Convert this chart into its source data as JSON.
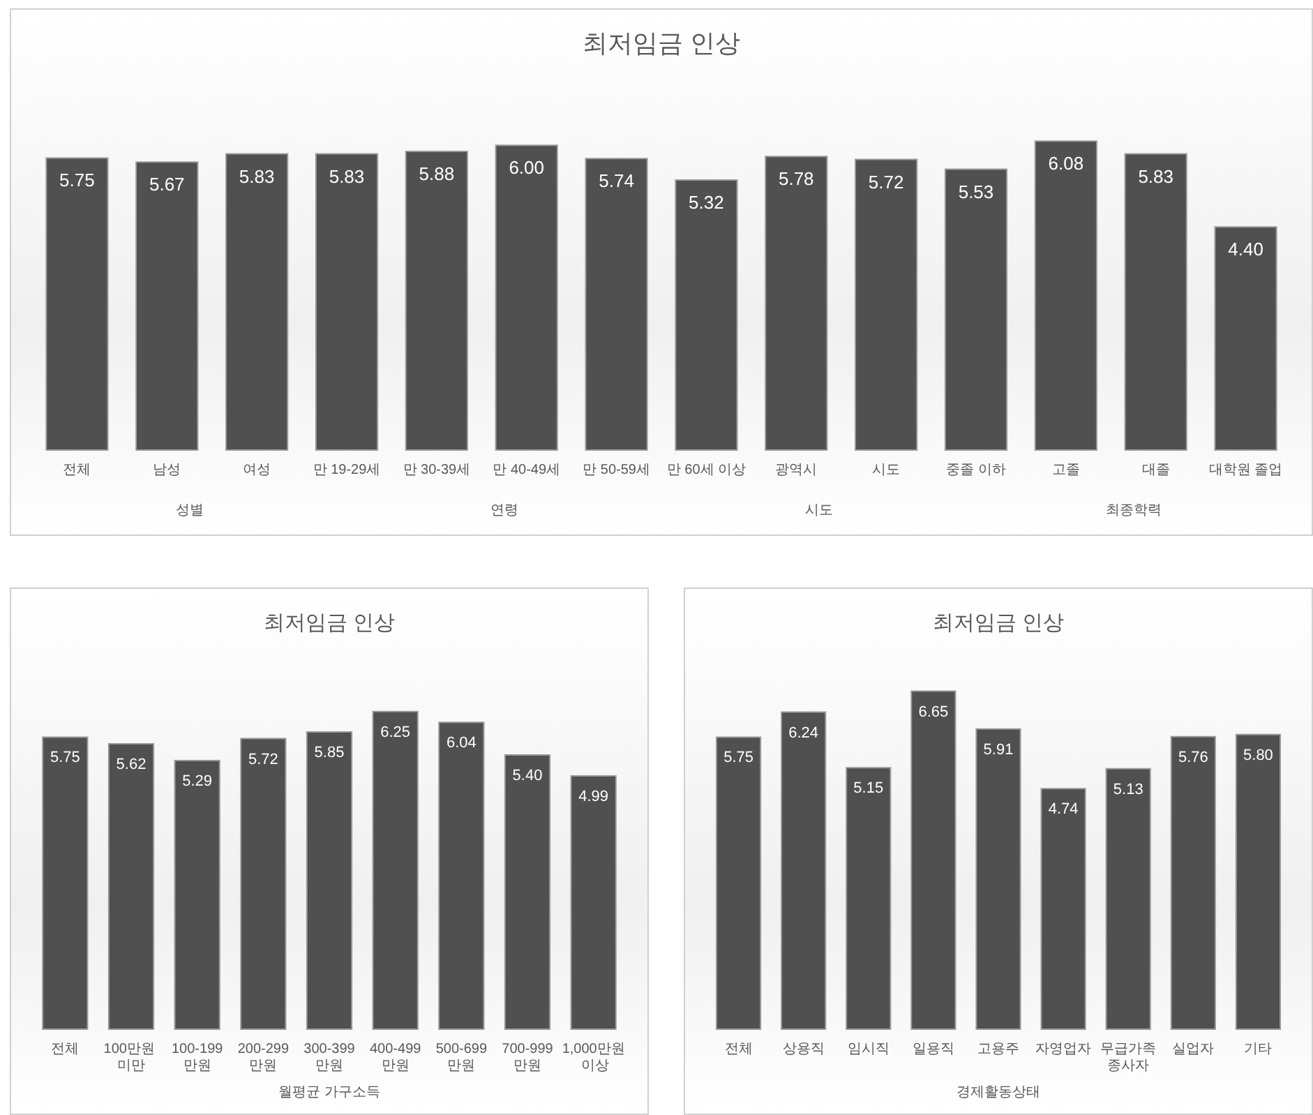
{
  "chart_data": [
    {
      "type": "bar",
      "title": "최저임금 인상",
      "categories": [
        "전체",
        "남성",
        "여성",
        "만 19-29세",
        "만 30-39세",
        "만 40-49세",
        "만 50-59세",
        "만 60세 이상",
        "광역시",
        "시도",
        "중졸 이하",
        "고졸",
        "대졸",
        "대학원 졸업"
      ],
      "values": [
        5.75,
        5.67,
        5.83,
        5.83,
        5.88,
        6.0,
        5.74,
        5.32,
        5.78,
        5.72,
        5.53,
        6.08,
        5.83,
        4.4
      ],
      "color": "#505050",
      "value_labels": [
        "5.75",
        "5.67",
        "5.83",
        "5.83",
        "5.88",
        "6.00",
        "5.74",
        "5.32",
        "5.78",
        "5.72",
        "5.53",
        "6.08",
        "5.83",
        "4.40"
      ],
      "annotations": [
        "성별",
        "연령",
        "시도",
        "최종학력"
      ]
    },
    {
      "type": "bar",
      "title": "최저임금 인상",
      "xlabel": "월평균 가구소득",
      "categories": [
        "전체",
        "100만원 미만",
        "100-199만원",
        "200-299만원",
        "300-399만원",
        "400-499만원",
        "500-699만원",
        "700-999만원",
        "1,000만원 이상"
      ],
      "values": [
        5.75,
        5.62,
        5.29,
        5.72,
        5.85,
        6.25,
        6.04,
        5.4,
        4.99
      ],
      "color": "#505050",
      "value_labels": [
        "5.75",
        "5.62",
        "5.29",
        "5.72",
        "5.85",
        "6.25",
        "6.04",
        "5.40",
        "4.99"
      ]
    },
    {
      "type": "bar",
      "title": "최저임금 인상",
      "xlabel": "경제활동상태",
      "categories": [
        "전체",
        "상용직",
        "임시직",
        "일용직",
        "고용주",
        "자영업자",
        "무급가족종사자",
        "실업자",
        "기타"
      ],
      "values": [
        5.75,
        6.24,
        5.15,
        6.65,
        5.91,
        4.74,
        5.13,
        5.76,
        5.8
      ],
      "color": "#505050",
      "value_labels": [
        "5.75",
        "6.24",
        "5.15",
        "6.65",
        "5.91",
        "4.74",
        "5.13",
        "5.76",
        "5.80"
      ]
    }
  ]
}
